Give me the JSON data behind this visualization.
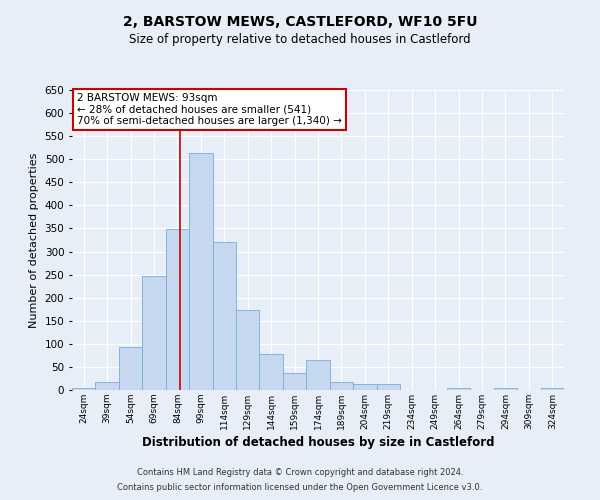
{
  "title": "2, BARSTOW MEWS, CASTLEFORD, WF10 5FU",
  "subtitle": "Size of property relative to detached houses in Castleford",
  "xlabel": "Distribution of detached houses by size in Castleford",
  "ylabel": "Number of detached properties",
  "bin_edges": [
    24,
    39,
    54,
    69,
    84,
    99,
    114,
    129,
    144,
    159,
    174,
    189,
    204,
    219,
    234,
    249,
    264,
    279,
    294,
    309,
    324,
    339
  ],
  "bar_heights": [
    5,
    17,
    93,
    247,
    348,
    514,
    320,
    173,
    77,
    37,
    65,
    17,
    13,
    12,
    0,
    0,
    5,
    0,
    5,
    0,
    5
  ],
  "bar_color": "#c5d8f0",
  "bar_edge_color": "#7aadd4",
  "property_line_x": 93,
  "ylim": [
    0,
    650
  ],
  "yticks": [
    0,
    50,
    100,
    150,
    200,
    250,
    300,
    350,
    400,
    450,
    500,
    550,
    600,
    650
  ],
  "annotation_title": "2 BARSTOW MEWS: 93sqm",
  "annotation_line1": "← 28% of detached houses are smaller (541)",
  "annotation_line2": "70% of semi-detached houses are larger (1,340) →",
  "annotation_box_color": "#ffffff",
  "annotation_box_edge": "#cc0000",
  "footnote1": "Contains HM Land Registry data © Crown copyright and database right 2024.",
  "footnote2": "Contains public sector information licensed under the Open Government Licence v3.0.",
  "background_color": "#e8eef7",
  "plot_background": "#e8eef7",
  "grid_color": "#ffffff",
  "tick_labels": [
    "24sqm",
    "39sqm",
    "54sqm",
    "69sqm",
    "84sqm",
    "99sqm",
    "114sqm",
    "129sqm",
    "144sqm",
    "159sqm",
    "174sqm",
    "189sqm",
    "204sqm",
    "219sqm",
    "234sqm",
    "249sqm",
    "264sqm",
    "279sqm",
    "294sqm",
    "309sqm",
    "324sqm"
  ]
}
